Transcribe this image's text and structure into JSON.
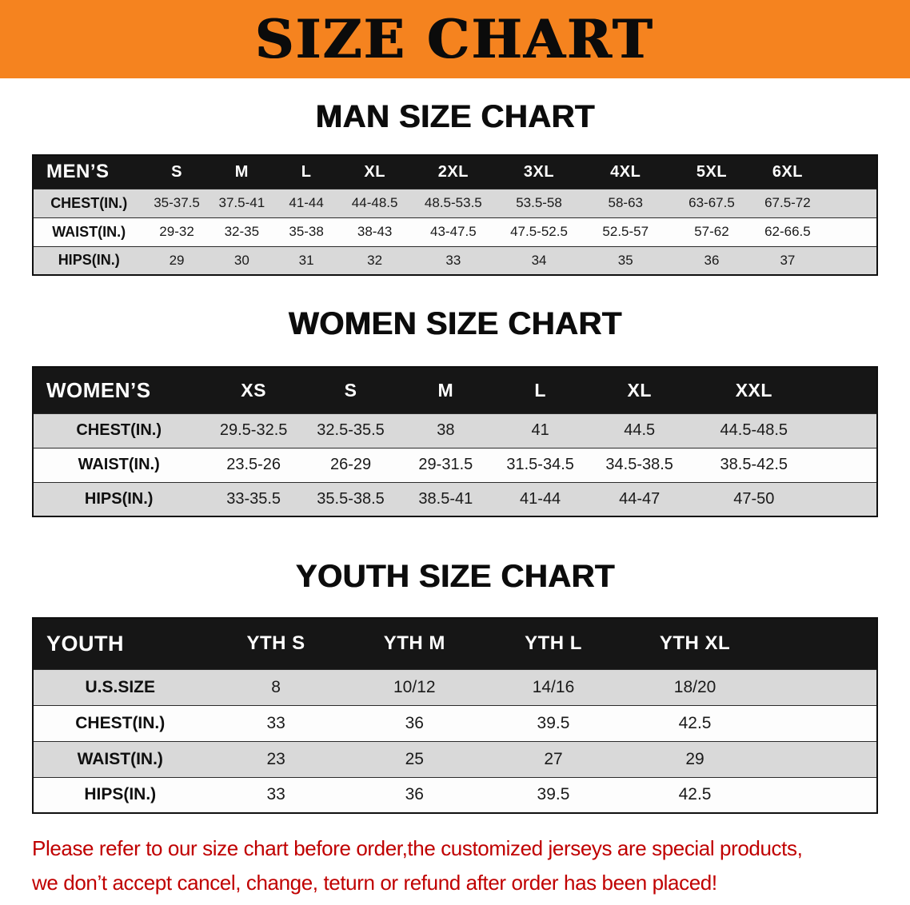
{
  "colors": {
    "banner_bg": "#f5831f",
    "header_bg": "#161616",
    "stripe": "#d9d9d9",
    "disclaimer_red": "#c00000"
  },
  "banner": {
    "title": "SIZE CHART"
  },
  "sections": [
    {
      "heading": "MAN SIZE CHART",
      "table": {
        "header": [
          "MEN’S",
          "S",
          "M",
          "L",
          "XL",
          "2XL",
          "3XL",
          "4XL",
          "5XL",
          "6XL"
        ],
        "rows": [
          [
            "CHEST(IN.)",
            "35-37.5",
            "37.5-41",
            "41-44",
            "44-48.5",
            "48.5-53.5",
            "53.5-58",
            "58-63",
            "63-67.5",
            "67.5-72"
          ],
          [
            "WAIST(IN.)",
            "29-32",
            "32-35",
            "35-38",
            "38-43",
            "43-47.5",
            "47.5-52.5",
            "52.5-57",
            "57-62",
            "62-66.5"
          ],
          [
            "HIPS(IN.)",
            "29",
            "30",
            "31",
            "32",
            "33",
            "34",
            "35",
            "36",
            "37"
          ]
        ]
      }
    },
    {
      "heading": "WOMEN SIZE CHART",
      "table": {
        "header": [
          "WOMEN’S",
          "XS",
          "S",
          "M",
          "L",
          "XL",
          "XXL"
        ],
        "rows": [
          [
            "CHEST(IN.)",
            "29.5-32.5",
            "32.5-35.5",
            "38",
            "41",
            "44.5",
            "44.5-48.5"
          ],
          [
            "WAIST(IN.)",
            "23.5-26",
            "26-29",
            "29-31.5",
            "31.5-34.5",
            "34.5-38.5",
            "38.5-42.5"
          ],
          [
            "HIPS(IN.)",
            "33-35.5",
            "35.5-38.5",
            "38.5-41",
            "41-44",
            "44-47",
            "47-50"
          ]
        ]
      }
    },
    {
      "heading": "YOUTH SIZE CHART",
      "table": {
        "header": [
          "YOUTH",
          "YTH S",
          "YTH M",
          "YTH L",
          "YTH XL"
        ],
        "rows": [
          [
            "U.S.SIZE",
            "8",
            "10/12",
            "14/16",
            "18/20"
          ],
          [
            "CHEST(IN.)",
            "33",
            "36",
            "39.5",
            "42.5"
          ],
          [
            "WAIST(IN.)",
            "23",
            "25",
            "27",
            "29"
          ],
          [
            "HIPS(IN.)",
            "33",
            "36",
            "39.5",
            "42.5"
          ]
        ]
      }
    }
  ],
  "disclaimer": {
    "line1": "Please refer to our size chart before order,the customized jerseys are special products,",
    "line2": "we don’t accept cancel, change, teturn or refund after order has been placed!"
  }
}
